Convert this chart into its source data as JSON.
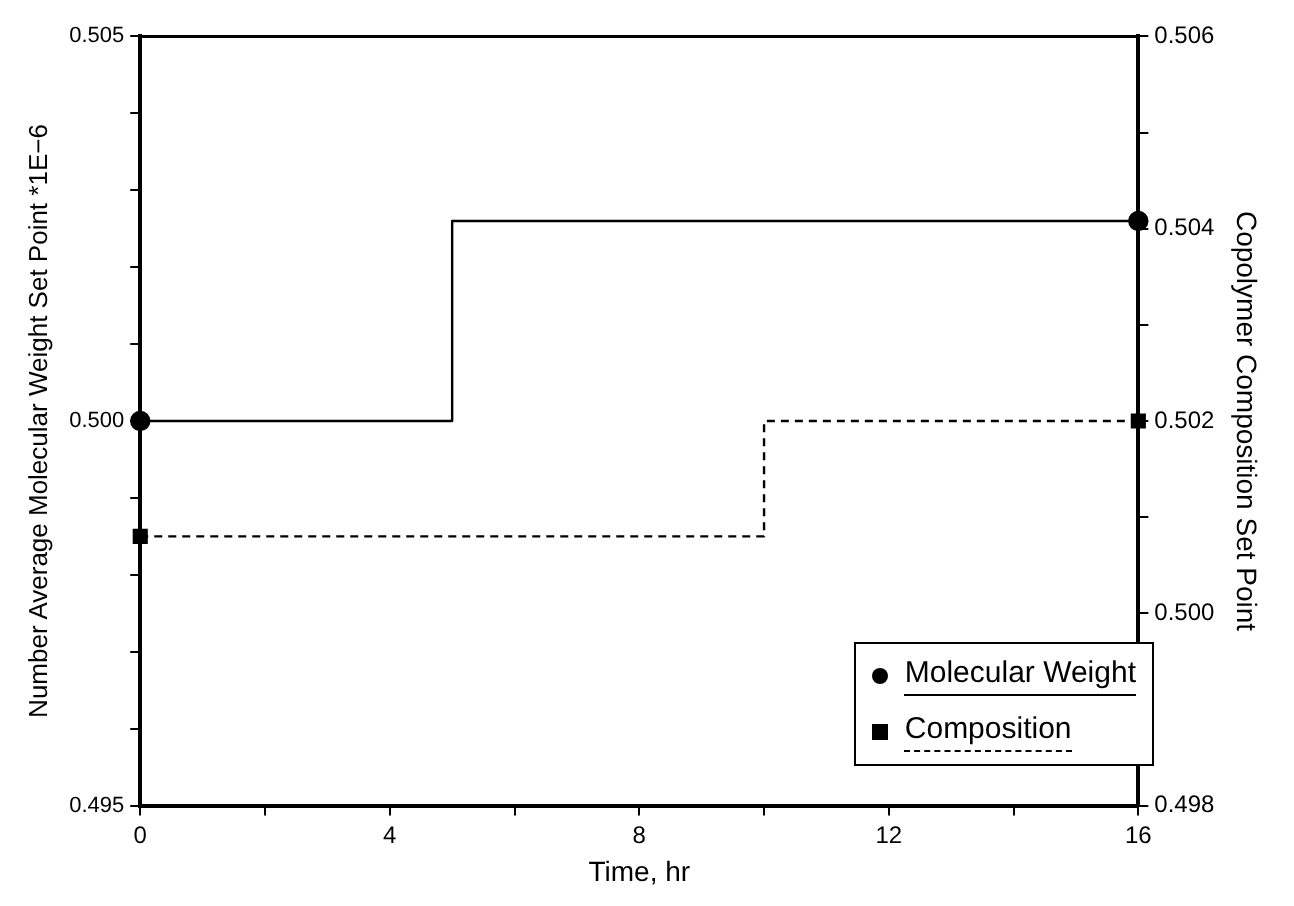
{
  "chart_data": {
    "type": "step",
    "xlabel": "Time, hr",
    "ylabel": "Number Average Molecular Weight Set Point *1E−6",
    "y2label": "Copolymer Composition Set Point",
    "series": [
      {
        "name": "Molecular Weight",
        "color": "#000000",
        "x": [
          0,
          5,
          16
        ],
        "values": [
          0.5,
          0.5026,
          0.5026
        ],
        "marker": "circle",
        "line_style": "solid"
      },
      {
        "name": "Composition",
        "color": "#000000",
        "x": [
          0,
          10,
          16
        ],
        "values": [
          0.5008,
          0.502,
          0.502
        ],
        "marker": "square",
        "line_style": "dashed",
        "axis": "y2"
      }
    ],
    "xlim": [
      0,
      16
    ],
    "xticks": [
      0,
      {
        "value": 2,
        "label": null
      },
      4,
      {
        "value": 6,
        "label": null
      },
      8,
      {
        "value": 10,
        "label": null
      },
      12,
      {
        "value": 14,
        "label": null
      },
      16
    ],
    "ylim": [
      0.495,
      0.505
    ],
    "yticks": [
      {
        "value": 0.495,
        "label": "0.495"
      },
      {
        "value": 0.496,
        "label": null
      },
      {
        "value": 0.497,
        "label": null
      },
      {
        "value": 0.498,
        "label": null
      },
      {
        "value": 0.499,
        "label": null
      },
      {
        "value": 0.5,
        "label": "0.500"
      },
      {
        "value": 0.501,
        "label": null
      },
      {
        "value": 0.502,
        "label": null
      },
      {
        "value": 0.503,
        "label": null
      },
      {
        "value": 0.504,
        "label": null
      },
      {
        "value": 0.505,
        "label": "0.505"
      }
    ],
    "y2lim": [
      0.498,
      0.506
    ],
    "y2ticks": [
      {
        "value": 0.498,
        "label": "0.498"
      },
      {
        "value": 0.499,
        "label": null
      },
      {
        "value": 0.5,
        "label": "0.500"
      },
      {
        "value": 0.501,
        "label": null
      },
      {
        "value": 0.502,
        "label": "0.502"
      },
      {
        "value": 0.503,
        "label": null
      },
      {
        "value": 0.504,
        "label": "0.504"
      },
      {
        "value": 0.505,
        "label": null
      },
      {
        "value": 0.506,
        "label": "0.506"
      }
    ],
    "grid": false,
    "legend": "bottom right"
  }
}
